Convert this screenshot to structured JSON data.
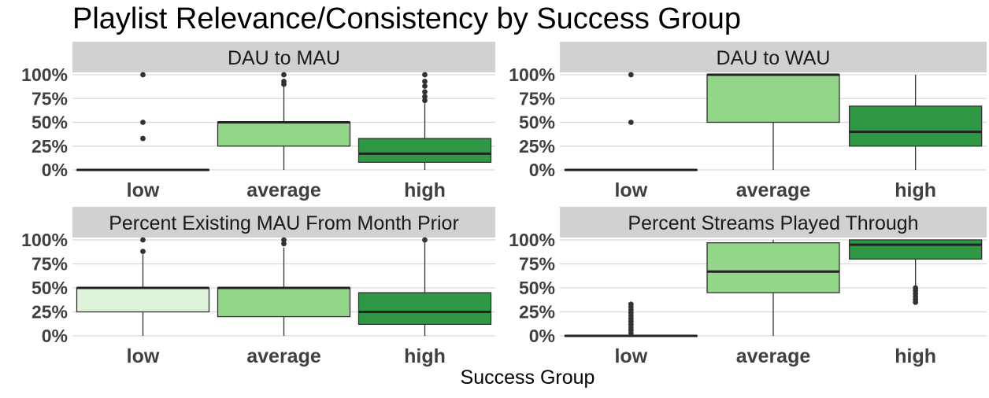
{
  "chart_data": {
    "type": "boxplot",
    "title": "Playlist Relevance/Consistency by Success Group",
    "xlabel": "Success Group",
    "ylabel": "",
    "categories": [
      "low",
      "average",
      "high"
    ],
    "y_ticks": [
      "0%",
      "25%",
      "50%",
      "75%",
      "100%"
    ],
    "ylim": [
      0,
      100
    ],
    "grid": true,
    "legend": "none",
    "colors": {
      "low": "#e0f3db",
      "average": "#93d589",
      "high": "#2e9845",
      "strip": "#d1d1d1",
      "grid": "#d9d9d9",
      "axis_text": "#404040",
      "outline": "#333333",
      "median": "#222222"
    },
    "panels": [
      {
        "strip": "DAU to MAU",
        "boxes": [
          {
            "category": "low",
            "whisker_low": 0,
            "q1": 0,
            "median": 0,
            "q3": 0,
            "whisker_high": 0,
            "outliers": [
              33,
              50,
              100
            ]
          },
          {
            "category": "average",
            "whisker_low": 0,
            "q1": 25,
            "median": 50,
            "q3": 50,
            "whisker_high": 88,
            "outliers": [
              90,
              93,
              100
            ]
          },
          {
            "category": "high",
            "whisker_low": 0,
            "q1": 8,
            "median": 17,
            "q3": 33,
            "whisker_high": 70,
            "outliers": [
              73,
              77,
              82,
              88,
              93,
              100
            ]
          }
        ]
      },
      {
        "strip": "DAU to WAU",
        "boxes": [
          {
            "category": "low",
            "whisker_low": 0,
            "q1": 0,
            "median": 0,
            "q3": 0,
            "whisker_high": 0,
            "outliers": [
              50,
              100
            ]
          },
          {
            "category": "average",
            "whisker_low": 0,
            "q1": 50,
            "median": 100,
            "q3": 100,
            "whisker_high": 100,
            "outliers": []
          },
          {
            "category": "high",
            "whisker_low": 0,
            "q1": 25,
            "median": 40,
            "q3": 67,
            "whisker_high": 100,
            "outliers": []
          }
        ]
      },
      {
        "strip": "Percent Existing MAU From Month Prior",
        "boxes": [
          {
            "category": "low",
            "whisker_low": 0,
            "q1": 25,
            "median": 50,
            "q3": 50,
            "whisker_high": 85,
            "outliers": [
              88,
              100
            ]
          },
          {
            "category": "average",
            "whisker_low": 0,
            "q1": 20,
            "median": 50,
            "q3": 50,
            "whisker_high": 92,
            "outliers": [
              96,
              100
            ]
          },
          {
            "category": "high",
            "whisker_low": 0,
            "q1": 12,
            "median": 25,
            "q3": 45,
            "whisker_high": 98,
            "outliers": [
              100
            ]
          }
        ]
      },
      {
        "strip": "Percent Streams Played Through",
        "boxes": [
          {
            "category": "low",
            "whisker_low": 0,
            "q1": 0,
            "median": 0,
            "q3": 0,
            "whisker_high": 0,
            "outliers": [
              3,
              6,
              9,
              12,
              15,
              18,
              21,
              24,
              27,
              30,
              33
            ]
          },
          {
            "category": "average",
            "whisker_low": 0,
            "q1": 45,
            "median": 67,
            "q3": 97,
            "whisker_high": 100,
            "outliers": []
          },
          {
            "category": "high",
            "whisker_low": 50,
            "q1": 80,
            "median": 95,
            "q3": 100,
            "whisker_high": 100,
            "outliers": [
              35,
              38,
              41,
              44,
              47,
              50
            ]
          }
        ]
      }
    ]
  }
}
